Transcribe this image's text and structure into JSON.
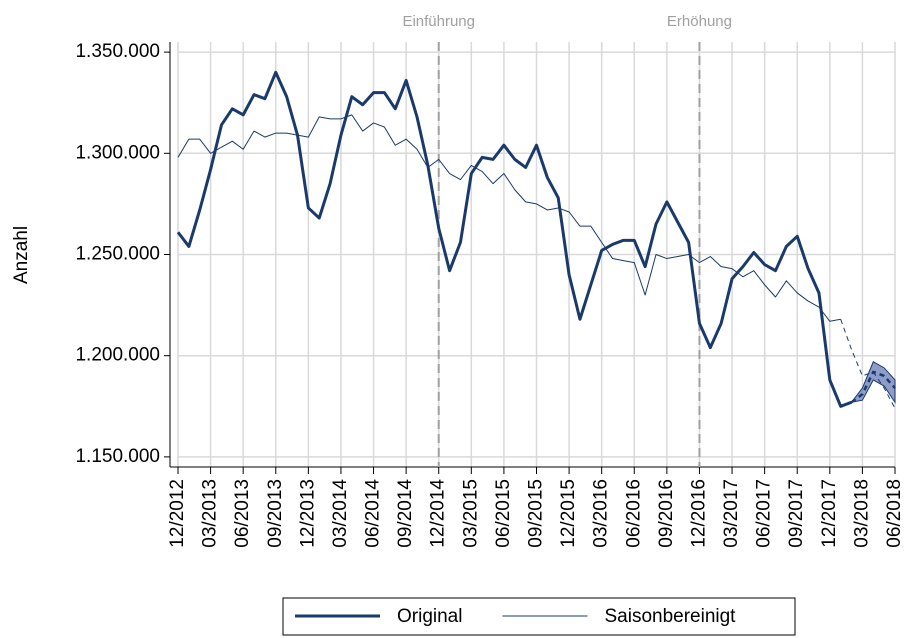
{
  "chart_data": {
    "type": "line",
    "y_label": "Anzahl",
    "categories": [
      "12/2012",
      null,
      null,
      "03/2013",
      null,
      null,
      "06/2013",
      null,
      null,
      "09/2013",
      null,
      null,
      "12/2013",
      null,
      null,
      "03/2014",
      null,
      null,
      "06/2014",
      null,
      null,
      "09/2014",
      null,
      null,
      "12/2014",
      null,
      null,
      "03/2015",
      null,
      null,
      "06/2015",
      null,
      null,
      "09/2015",
      null,
      null,
      "12/2015",
      null,
      null,
      "03/2016",
      null,
      null,
      "06/2016",
      null,
      null,
      "09/2016",
      null,
      null,
      "12/2016",
      null,
      null,
      "03/2017",
      null,
      null,
      "06/2017",
      null,
      null,
      "09/2017",
      null,
      null,
      "12/2017",
      null,
      null,
      "03/2018",
      null,
      null,
      "06/2018"
    ],
    "series": [
      {
        "name": "Original",
        "color": "#1a3a6b",
        "width": 3,
        "values": [
          1261000,
          1254000,
          1272000,
          1292000,
          1314000,
          1322000,
          1319000,
          1329000,
          1327000,
          1340000,
          1328000,
          1309000,
          1273000,
          1268000,
          1285000,
          1309000,
          1328000,
          1324000,
          1330000,
          1330000,
          1322000,
          1336000,
          1318000,
          1294000,
          1263000,
          1242000,
          1256000,
          1290000,
          1298000,
          1297000,
          1304000,
          1297000,
          1293000,
          1304000,
          1288000,
          1278000,
          1240000,
          1218000,
          1235000,
          1252000,
          1255000,
          1257000,
          1257000,
          1244000,
          1265000,
          1276000,
          1266000,
          1256000,
          1216000,
          1204000,
          1216000,
          1238000,
          1244000,
          1251000,
          1245000,
          1242000,
          1254000,
          1259000,
          1243000,
          1231000,
          1188000,
          1175000,
          1177000,
          null,
          null,
          null,
          null
        ]
      },
      {
        "name": "Saisonbereinigt",
        "color": "#1a3a6b",
        "width": 1,
        "values": [
          1298000,
          1307000,
          1307000,
          1300000,
          1303000,
          1306000,
          1302000,
          1311000,
          1308000,
          1310000,
          1310000,
          1309000,
          1308000,
          1318000,
          1317000,
          1317000,
          1319000,
          1311000,
          1315000,
          1313000,
          1304000,
          1307000,
          1302000,
          1293000,
          1297000,
          1290000,
          1287000,
          1294000,
          1291000,
          1285000,
          1290000,
          1282000,
          1276000,
          1275000,
          1272000,
          1273000,
          1271000,
          1264000,
          1264000,
          1256000,
          1248000,
          1247000,
          1246000,
          1230000,
          1250000,
          1248000,
          1249000,
          1250000,
          1246000,
          1249000,
          1244000,
          1243000,
          1239000,
          1242000,
          1235000,
          1229000,
          1237000,
          1231000,
          1227000,
          1224000,
          1217000,
          1218000,
          null,
          null,
          null,
          null,
          null
        ]
      },
      {
        "color": "#1a3a6b",
        "width": 2.5,
        "dashed": true,
        "values": [
          null,
          null,
          null,
          null,
          null,
          null,
          null,
          null,
          null,
          null,
          null,
          null,
          null,
          null,
          null,
          null,
          null,
          null,
          null,
          null,
          null,
          null,
          null,
          null,
          null,
          null,
          null,
          null,
          null,
          null,
          null,
          null,
          null,
          null,
          null,
          null,
          null,
          null,
          null,
          null,
          null,
          null,
          null,
          null,
          null,
          null,
          null,
          null,
          null,
          null,
          null,
          null,
          null,
          null,
          null,
          null,
          null,
          null,
          null,
          null,
          null,
          null,
          1177000,
          1181000,
          1192000,
          1190000,
          1184000
        ]
      },
      {
        "color": "#1a3a6b",
        "width": 1,
        "dashed": true,
        "values": [
          null,
          null,
          null,
          null,
          null,
          null,
          null,
          null,
          null,
          null,
          null,
          null,
          null,
          null,
          null,
          null,
          null,
          null,
          null,
          null,
          null,
          null,
          null,
          null,
          null,
          null,
          null,
          null,
          null,
          null,
          null,
          null,
          null,
          null,
          null,
          null,
          null,
          null,
          null,
          null,
          null,
          null,
          null,
          null,
          null,
          null,
          null,
          null,
          null,
          null,
          null,
          null,
          null,
          null,
          null,
          null,
          null,
          null,
          null,
          null,
          null,
          1218000,
          1203000,
          1190000,
          1192000,
          1184000,
          1174000
        ]
      }
    ],
    "band": {
      "color": "#8d9cc9",
      "lower": [
        null,
        null,
        null,
        null,
        null,
        null,
        null,
        null,
        null,
        null,
        null,
        null,
        null,
        null,
        null,
        null,
        null,
        null,
        null,
        null,
        null,
        null,
        null,
        null,
        null,
        null,
        null,
        null,
        null,
        null,
        null,
        null,
        null,
        null,
        null,
        null,
        null,
        null,
        null,
        null,
        null,
        null,
        null,
        null,
        null,
        null,
        null,
        null,
        null,
        null,
        null,
        null,
        null,
        null,
        null,
        null,
        null,
        null,
        null,
        null,
        null,
        null,
        1177000,
        1178000,
        1188000,
        1185000,
        1177000
      ],
      "upper": [
        null,
        null,
        null,
        null,
        null,
        null,
        null,
        null,
        null,
        null,
        null,
        null,
        null,
        null,
        null,
        null,
        null,
        null,
        null,
        null,
        null,
        null,
        null,
        null,
        null,
        null,
        null,
        null,
        null,
        null,
        null,
        null,
        null,
        null,
        null,
        null,
        null,
        null,
        null,
        null,
        null,
        null,
        null,
        null,
        null,
        null,
        null,
        null,
        null,
        null,
        null,
        null,
        null,
        null,
        null,
        null,
        null,
        null,
        null,
        null,
        null,
        null,
        1177000,
        1184000,
        1197000,
        1194000,
        1188000
      ]
    },
    "annotations": [
      {
        "label": "Einführung",
        "x": "12/2014"
      },
      {
        "label": "Erhöhung",
        "x": "12/2016"
      }
    ],
    "ylim": [
      1145000,
      1355000
    ],
    "yticks": [
      {
        "value": 1150000,
        "label": "1.150.000"
      },
      {
        "value": 1200000,
        "label": "1.200.000"
      },
      {
        "value": 1250000,
        "label": "1.250.000"
      },
      {
        "value": 1300000,
        "label": "1.300.000"
      },
      {
        "value": 1350000,
        "label": "1.350.000"
      }
    ],
    "grid": true
  }
}
